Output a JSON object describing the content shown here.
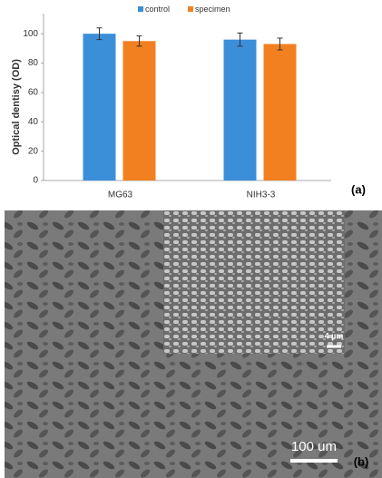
{
  "chart_data": {
    "type": "bar",
    "panel_label": "(a)",
    "y_label": "Optical dentisy (OD)",
    "categories": [
      "MG63",
      "NIH3-3"
    ],
    "series": [
      {
        "name": "control",
        "color": "#3b8fd8",
        "values": [
          100,
          96
        ],
        "errors": [
          4,
          4.5
        ]
      },
      {
        "name": "specimen",
        "color": "#f28021",
        "values": [
          95,
          93
        ],
        "errors": [
          3.5,
          4
        ]
      }
    ],
    "ylim": [
      0,
      110
    ],
    "yticks": [
      0,
      20,
      40,
      60,
      80,
      100
    ],
    "grid": false,
    "legend": "top"
  },
  "image": {
    "panel_label": "(b)",
    "scale_bars": [
      "4 µm",
      "100 um"
    ]
  }
}
